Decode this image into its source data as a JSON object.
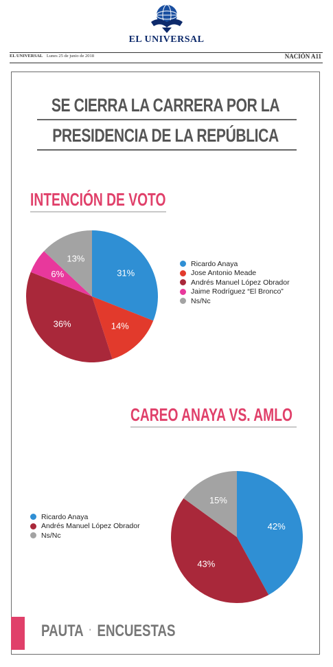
{
  "masthead": {
    "brand": "EL UNIVERSAL"
  },
  "dateline": {
    "paper": "EL UNIVERSAL",
    "date": "Lunes 25 de junio de 2018",
    "section": "NACIÓN A11"
  },
  "headline": {
    "line1": "SE CIERRA LA CARRERA POR LA",
    "line2": "PRESIDENCIA DE LA REPÚBLICA"
  },
  "colors": {
    "accent": "#e0406a",
    "anaya": "#2f8fd4",
    "meade": "#e23a2c",
    "amlo": "#a9283a",
    "bronco": "#e8389c",
    "nsnc": "#a3a3a3"
  },
  "chart_data": [
    {
      "type": "pie",
      "title": "INTENCIÓN DE VOTO",
      "legend_position": "right",
      "slices": [
        {
          "label": "Ricardo Anaya",
          "value": 31,
          "display": "31%",
          "color": "#2f8fd4"
        },
        {
          "label": "Jose Antonio Meade",
          "value": 14,
          "display": "14%",
          "color": "#e23a2c"
        },
        {
          "label": "Andrés Manuel López Obrador",
          "value": 36,
          "display": "36%",
          "color": "#a9283a"
        },
        {
          "label": "Jaime Rodríguez “El Bronco”",
          "value": 6,
          "display": "6%",
          "color": "#e8389c"
        },
        {
          "label": "Ns/Nc",
          "value": 13,
          "display": "13%",
          "color": "#a3a3a3"
        }
      ]
    },
    {
      "type": "pie",
      "title": "CAREO ANAYA VS. AMLO",
      "legend_position": "left",
      "slices": [
        {
          "label": "Ricardo Anaya",
          "value": 42,
          "display": "42%",
          "color": "#2f8fd4"
        },
        {
          "label": "Andrés Manuel López Obrador",
          "value": 43,
          "display": "43%",
          "color": "#a9283a"
        },
        {
          "label": "Ns/Nc",
          "value": 15,
          "display": "15%",
          "color": "#a3a3a3"
        }
      ]
    }
  ],
  "footer": {
    "left": "PAUTA",
    "separator": "·",
    "right": "ENCUESTAS"
  }
}
